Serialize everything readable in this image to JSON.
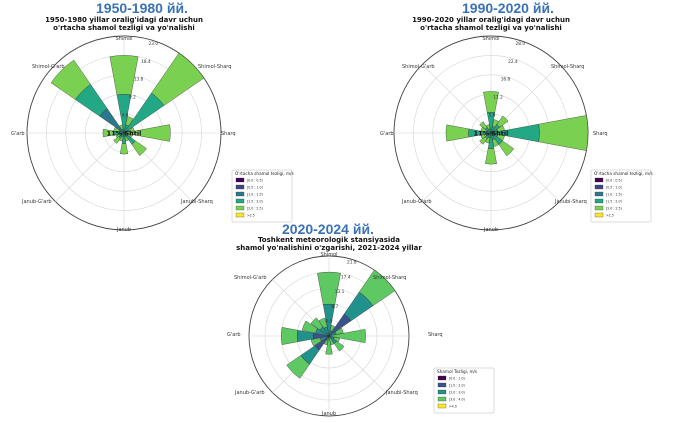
{
  "period_titles": [
    "1950-1980 йй.",
    "1990-2020 йй.",
    "2020-2024 йй."
  ],
  "chart_data": [
    {
      "type": "windrose",
      "title": "1950-1980 yillar oralig'idagi davr uchun\no'rtacha shamol tezligi va yo'nalishi",
      "directions": [
        "Shimol",
        "Shimol-Sharq",
        "Sharq",
        "Janubi-Sharq",
        "Janub",
        "Janub-G'arb",
        "G'arb",
        "Shimol-G'arb"
      ],
      "sector_dirs": [
        0,
        22.5,
        45,
        67.5,
        90,
        112.5,
        135,
        157.5,
        180,
        202.5,
        225,
        247.5,
        270,
        292.5,
        315,
        337.5
      ],
      "sector_values": [
        18.4,
        4.0,
        23.0,
        2.5,
        11.0,
        2.0,
        6.5,
        2.0,
        5.0,
        2.0,
        3.0,
        2.0,
        5.0,
        2.5,
        21.0,
        2.0
      ],
      "sector_bins": [
        2,
        2,
        2,
        2,
        1,
        2,
        2,
        2,
        2,
        2,
        2,
        2,
        2,
        2,
        3,
        2
      ],
      "rticks": [
        "4.6",
        "9.2",
        "13.8",
        "18.4",
        "23.0"
      ],
      "rmax": 23.0,
      "calm_label": "11% Shtil",
      "legend_title": "O'rtacha shamol tezligi, m/s",
      "legend_items": [
        "[0.0 : 0.5)",
        "[0.5 : 1.0)",
        "[1.0 : 1.5)",
        "[1.5 : 2.0)",
        "[2.0 : 2.5)",
        ">2.5"
      ]
    },
    {
      "type": "windrose",
      "title": "1990-2020 yillar oralig'idagi davr uchun\no'rtacha shamol tezligi va yo'nalishi",
      "directions": [
        "Shimol",
        "Shimol-Sharq",
        "Sharq",
        "Janubi-Sharq",
        "Janub",
        "Janub-G'arb",
        "G'arb",
        "Shimol-G'arb"
      ],
      "sector_dirs": [
        0,
        22.5,
        45,
        67.5,
        90,
        112.5,
        135,
        157.5,
        180,
        202.5,
        225,
        247.5,
        270,
        292.5,
        315,
        337.5
      ],
      "sector_values": [
        12.0,
        4.0,
        6.0,
        4.0,
        28.0,
        4.0,
        8.0,
        4.0,
        9.0,
        3.0,
        4.0,
        3.0,
        13.0,
        3.0,
        4.0,
        2.5
      ],
      "sector_bins": [
        2,
        2,
        2,
        2,
        2,
        2,
        2,
        2,
        2,
        2,
        2,
        2,
        2,
        2,
        2,
        2
      ],
      "rticks": [
        "5.6",
        "11.2",
        "16.8",
        "22.4",
        "28.0"
      ],
      "rmax": 28.0,
      "calm_label": "11% Shtil",
      "legend_title": "O'rtacha shamol tezligi, m/s",
      "legend_items": [
        "[0.0 : 0.5)",
        "[0.5 : 1.0)",
        "[1.0 : 1.5)",
        "[1.5 : 2.0)",
        "[2.0 : 2.5)",
        ">2.5"
      ]
    },
    {
      "type": "windrose",
      "title": "Toshkent meteorologik stansiyasida\nshamol yo'nalishini o'zgarishi, 2021-2024 yillar",
      "directions": [
        "Shimol",
        "Shimol-Sharq",
        "Sharq",
        "Janubi-Sharq",
        "Janub",
        "Janub-G'arb",
        "G'arb",
        "Shimol-G'arb"
      ],
      "sector_dirs": [
        0,
        22.5,
        45,
        67.5,
        90,
        112.5,
        135,
        157.5,
        180,
        202.5,
        225,
        247.5,
        270,
        292.5,
        315,
        337.5
      ],
      "sector_values": [
        17.4,
        3.0,
        21.8,
        4.0,
        10.0,
        3.0,
        5.0,
        2.5,
        5.0,
        2.5,
        14.0,
        5.0,
        13.0,
        7.5,
        6.0,
        5.0
      ],
      "sector_bins": [
        2,
        2,
        3,
        2,
        1,
        2,
        2,
        1,
        1,
        2,
        3,
        2,
        3,
        2,
        2,
        2
      ],
      "rticks": [
        "4.4",
        "8.7",
        "13.1",
        "17.4",
        "21.8"
      ],
      "rmax": 21.8,
      "calm_label": "",
      "legend_title": "Shamol Tezligi, m/s",
      "legend_items": [
        "[0.0 : 1.0)",
        "[1.0 : 2.0)",
        "[2.0 : 3.0)",
        "[3.0 : 4.0)",
        ">4.0"
      ]
    }
  ],
  "colors": {
    "title_blue": "#3a72b5",
    "viridis6": [
      "#440154",
      "#414487",
      "#2a788e",
      "#22a884",
      "#7ad151",
      "#fde725"
    ],
    "viridis5": [
      "#440154",
      "#3b528b",
      "#21918c",
      "#5ec962",
      "#fde725"
    ]
  }
}
